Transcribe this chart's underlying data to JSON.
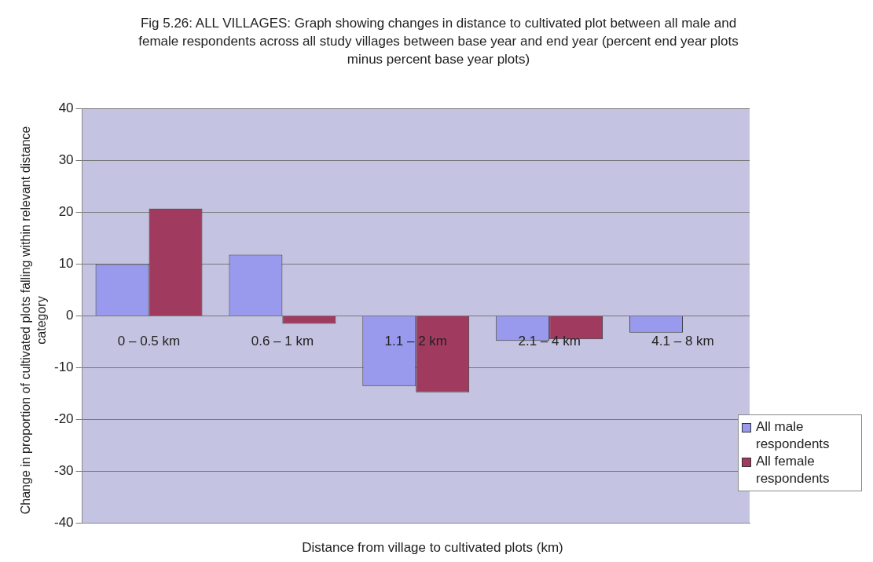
{
  "chart_data": {
    "type": "bar",
    "title": "Fig 5.26: ALL VILLAGES: Graph showing changes in distance to cultivated plot between all male and female respondents across all study villages between base year and end year (percent end year plots minus percent base year plots)",
    "xlabel": "Distance from village to cultivated plots (km)",
    "ylabel": "Change in proportion of cultivated plots falling within relevant distance category",
    "categories": [
      "0 – 0.5 km",
      "0.6 – 1 km",
      "1.1 – 2 km",
      "2.1 – 4 km",
      "4.1 – 8 km"
    ],
    "series": [
      {
        "name": "All male respondents",
        "color": "#9999ee",
        "values": [
          10,
          11.8,
          -13.5,
          -4.8,
          -3.2
        ]
      },
      {
        "name": "All female respondents",
        "color": "#a03a5e",
        "values": [
          20.7,
          -1.5,
          -14.7,
          -4.5,
          0
        ]
      }
    ],
    "ylim": [
      -40,
      40
    ],
    "yticks": [
      -40,
      -30,
      -20,
      -10,
      0,
      10,
      20,
      30,
      40
    ],
    "grid": "y",
    "legend": "bottom right"
  }
}
